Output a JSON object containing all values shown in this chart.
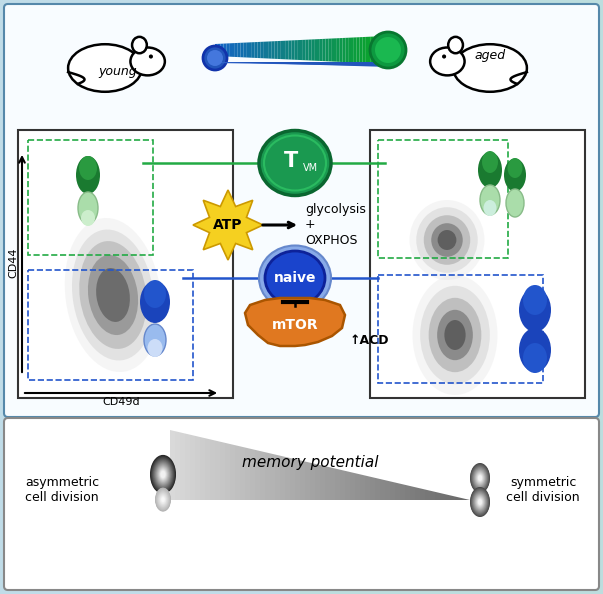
{
  "fig_width": 6.03,
  "fig_height": 5.94,
  "young_label": "young",
  "aged_label": "aged",
  "tvm_color": "#1a9950",
  "naive_color": "#2255cc",
  "mtor_color": "#e07820",
  "atp_color": "#f0d020",
  "memory_potential_label": "memory potential",
  "asymmetric_label": "asymmetric\ncell division",
  "symmetric_label": "symmetric\ncell division",
  "cd44_label": "CD44",
  "cd49d_label": "CD49d",
  "glycolysis_label": "glycolysis\n+\nOXPHOS",
  "acd_label": "↑ACD",
  "atp_label": "ATP",
  "naive_label": "naive",
  "mtor_label": "mTOR"
}
